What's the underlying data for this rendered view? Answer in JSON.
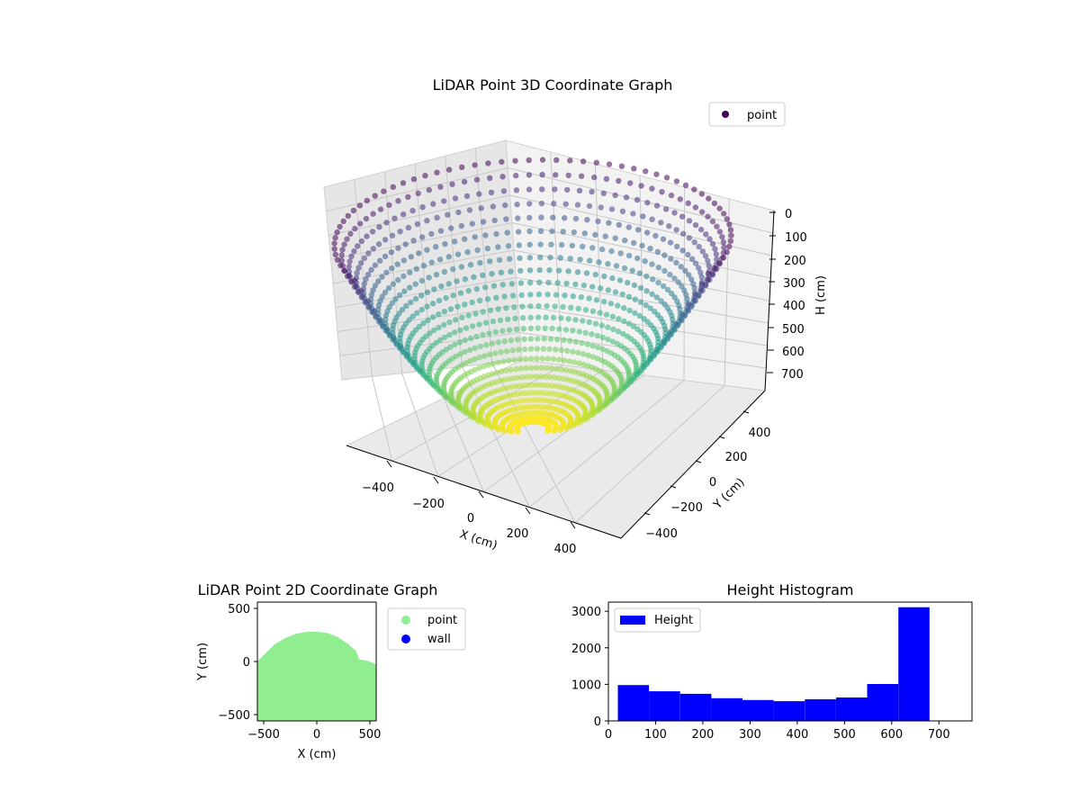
{
  "chart_data": [
    {
      "type": "scatter3d",
      "title": "LiDAR Point 3D Coordinate Graph",
      "xlabel": "X (cm)",
      "ylabel": "Y (cm)",
      "zlabel": "H (cm)",
      "xticks": [
        "−400",
        "−200",
        "0",
        "200",
        "400"
      ],
      "yticks": [
        "−400",
        "−200",
        "0",
        "200",
        "400"
      ],
      "zticks": [
        "0",
        "100",
        "200",
        "300",
        "400",
        "500",
        "600",
        "700"
      ],
      "zlim": [
        750,
        0
      ],
      "legend": [
        {
          "label": "point",
          "color": "#440154"
        }
      ],
      "legend_loc": "upper right",
      "colormap": "viridis",
      "grid": true
    },
    {
      "type": "scatter",
      "title": "LiDAR Point 2D Coordinate Graph",
      "xlabel": "X (cm)",
      "ylabel": "Y (cm)",
      "xticks": [
        "−500",
        "0",
        "500"
      ],
      "yticks": [
        "−500",
        "0",
        "500"
      ],
      "xlim": [
        -560,
        560
      ],
      "ylim": [
        -560,
        560
      ],
      "series": [
        {
          "name": "point",
          "color": "#90ee90",
          "outline": [
            [
              -560,
              -560
            ],
            [
              -560,
              0
            ],
            [
              -500,
              60
            ],
            [
              -400,
              160
            ],
            [
              -300,
              220
            ],
            [
              -200,
              260
            ],
            [
              -100,
              280
            ],
            [
              0,
              280
            ],
            [
              100,
              270
            ],
            [
              200,
              230
            ],
            [
              300,
              160
            ],
            [
              370,
              100
            ],
            [
              400,
              20
            ],
            [
              460,
              10
            ],
            [
              500,
              0
            ],
            [
              560,
              -30
            ],
            [
              560,
              -560
            ]
          ]
        },
        {
          "name": "wall",
          "color": "#0000ff"
        }
      ],
      "legend_loc": "outside right"
    },
    {
      "type": "bar",
      "title": "Height Histogram",
      "xlabel": "",
      "ylabel": "",
      "bin_edges": [
        20,
        86,
        152,
        218,
        284,
        350,
        416,
        482,
        548,
        614,
        680
      ],
      "values": [
        980,
        810,
        740,
        620,
        570,
        540,
        590,
        640,
        1010,
        3110
      ],
      "xticks": [
        "0",
        "100",
        "200",
        "300",
        "400",
        "500",
        "600",
        "700"
      ],
      "yticks": [
        "0",
        "1000",
        "2000",
        "3000"
      ],
      "xlim": [
        0,
        770
      ],
      "ylim": [
        0,
        3250
      ],
      "legend": [
        {
          "label": "Height",
          "color": "#0000ff"
        }
      ],
      "legend_loc": "upper left"
    }
  ]
}
